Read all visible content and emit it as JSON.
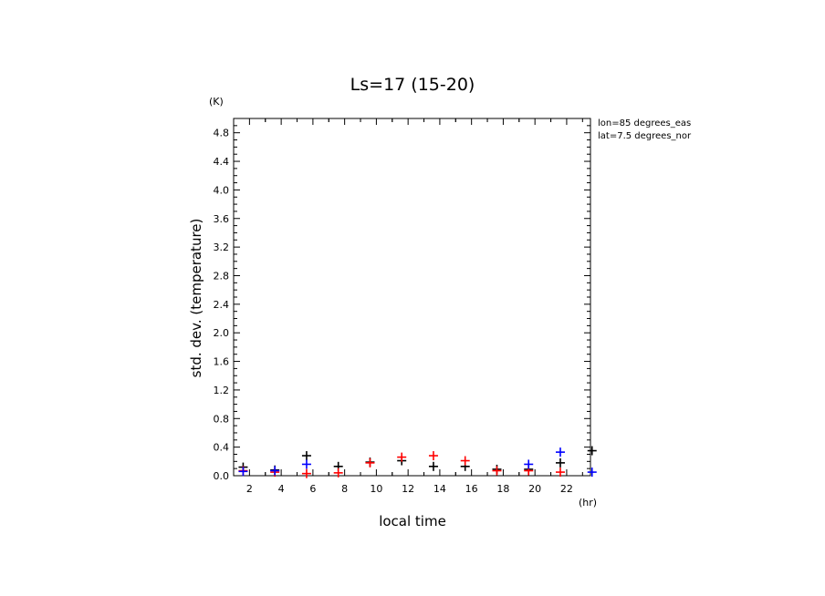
{
  "chart_data": {
    "type": "scatter",
    "title": "Ls=17 (15-20)",
    "xlabel": "local time",
    "xunit": "(hr)",
    "ylabel": "std. dev. (temperature)",
    "yunit": "(K)",
    "xlim": [
      1,
      23.5
    ],
    "ylim": [
      0,
      5.0
    ],
    "xticks": [
      2,
      4,
      6,
      8,
      10,
      12,
      14,
      16,
      18,
      20,
      22
    ],
    "yticks": [
      0.0,
      0.4,
      0.8,
      1.2,
      1.6,
      2.0,
      2.4,
      2.8,
      3.2,
      3.6,
      4.0,
      4.4,
      4.8
    ],
    "grid": false,
    "annotations": [
      "lon=85 degrees_eas",
      "lat=7.5 degrees_nor"
    ],
    "series": [
      {
        "color": "#000000",
        "points": [
          [
            1.6,
            0.12
          ],
          [
            3.6,
            0.08
          ],
          [
            5.6,
            0.28
          ],
          [
            7.6,
            0.13
          ],
          [
            9.6,
            0.19
          ],
          [
            11.6,
            0.21
          ],
          [
            13.6,
            0.13
          ],
          [
            15.6,
            0.13
          ],
          [
            17.6,
            0.09
          ],
          [
            19.6,
            0.09
          ],
          [
            21.6,
            0.18
          ],
          [
            23.6,
            0.35
          ]
        ]
      },
      {
        "color": "#ff0000",
        "points": [
          [
            1.6,
            0.07
          ],
          [
            3.6,
            0.05
          ],
          [
            5.6,
            0.03
          ],
          [
            7.6,
            0.04
          ],
          [
            9.6,
            0.18
          ],
          [
            11.6,
            0.26
          ],
          [
            13.6,
            0.28
          ],
          [
            15.6,
            0.21
          ],
          [
            17.6,
            0.07
          ],
          [
            19.6,
            0.07
          ],
          [
            21.6,
            0.05
          ]
        ]
      },
      {
        "color": "#0000ff",
        "points": [
          [
            1.6,
            0.06
          ],
          [
            3.6,
            0.07
          ],
          [
            5.6,
            0.16
          ],
          [
            19.6,
            0.16
          ],
          [
            21.6,
            0.33
          ],
          [
            23.6,
            0.05
          ]
        ]
      }
    ]
  }
}
